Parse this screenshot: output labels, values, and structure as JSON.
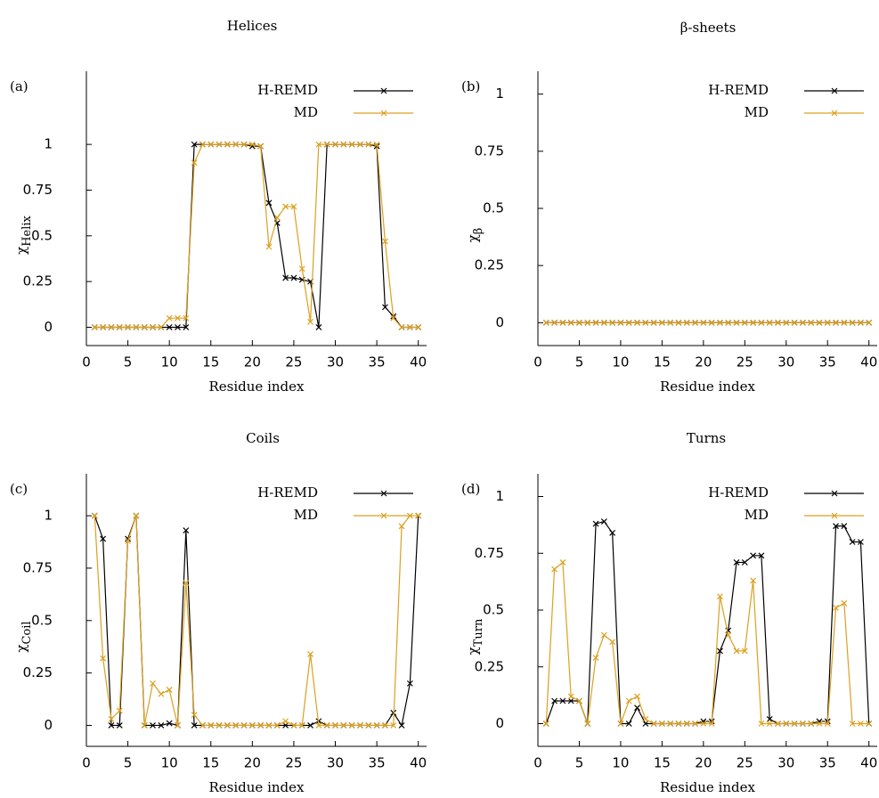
{
  "chart_data": [
    {
      "type": "line",
      "panel": "(a)",
      "title": "Helices",
      "xlabel": "Residue index",
      "ylabel": "χ",
      "ylabel_subscript": "Helix",
      "x": [
        1,
        2,
        3,
        4,
        5,
        6,
        7,
        8,
        9,
        10,
        11,
        12,
        13,
        14,
        15,
        16,
        17,
        18,
        19,
        20,
        21,
        22,
        23,
        24,
        25,
        26,
        27,
        28,
        29,
        30,
        31,
        32,
        33,
        34,
        35,
        36,
        37,
        38,
        39,
        40
      ],
      "series": [
        {
          "name": "H-REMD",
          "color": "#000000",
          "values": [
            0,
            0,
            0,
            0,
            0,
            0,
            0,
            0,
            0,
            0,
            0,
            0,
            1,
            1,
            1,
            1,
            1,
            1,
            1,
            0.99,
            0.99,
            0.68,
            0.57,
            0.27,
            0.27,
            0.26,
            0.25,
            0,
            1,
            1,
            1,
            1,
            1,
            1,
            0.99,
            0.11,
            0.06,
            0,
            0,
            0
          ]
        },
        {
          "name": "MD",
          "color": "#dca020",
          "values": [
            0,
            0,
            0,
            0,
            0,
            0,
            0,
            0,
            0,
            0.05,
            0.05,
            0.05,
            0.9,
            1,
            1,
            1,
            1,
            1,
            1,
            1,
            0.99,
            0.44,
            0.6,
            0.66,
            0.66,
            0.32,
            0.03,
            1,
            1,
            1,
            1,
            1,
            1,
            1,
            1,
            0.47,
            0.05,
            0,
            0,
            0
          ]
        }
      ],
      "xlim": [
        0,
        41
      ],
      "xticks": [
        0,
        5,
        10,
        15,
        20,
        25,
        30,
        35,
        40
      ],
      "ylim": [
        -0.1,
        1.4
      ],
      "yticks": [
        0,
        0.25,
        0.5,
        0.75,
        1
      ]
    },
    {
      "type": "line",
      "panel": "(b)",
      "title": "β-sheets",
      "xlabel": "Residue index",
      "ylabel": "χ",
      "ylabel_subscript": "β",
      "x": [
        1,
        2,
        3,
        4,
        5,
        6,
        7,
        8,
        9,
        10,
        11,
        12,
        13,
        14,
        15,
        16,
        17,
        18,
        19,
        20,
        21,
        22,
        23,
        24,
        25,
        26,
        27,
        28,
        29,
        30,
        31,
        32,
        33,
        34,
        35,
        36,
        37,
        38,
        39,
        40
      ],
      "series": [
        {
          "name": "H-REMD",
          "color": "#000000",
          "values": [
            0,
            0,
            0,
            0,
            0,
            0,
            0,
            0,
            0,
            0,
            0,
            0,
            0,
            0,
            0,
            0,
            0,
            0,
            0,
            0,
            0,
            0,
            0,
            0,
            0,
            0,
            0,
            0,
            0,
            0,
            0,
            0,
            0,
            0,
            0,
            0,
            0,
            0,
            0,
            0
          ]
        },
        {
          "name": "MD",
          "color": "#dca020",
          "values": [
            0,
            0,
            0,
            0,
            0,
            0,
            0,
            0,
            0,
            0,
            0,
            0,
            0,
            0,
            0,
            0,
            0,
            0,
            0,
            0,
            0,
            0,
            0,
            0,
            0,
            0,
            0,
            0,
            0,
            0,
            0,
            0,
            0,
            0,
            0,
            0,
            0,
            0,
            0,
            0
          ]
        }
      ],
      "xlim": [
        0,
        41
      ],
      "xticks": [
        0,
        5,
        10,
        15,
        20,
        25,
        30,
        35,
        40
      ],
      "ylim": [
        -0.1,
        1.1
      ],
      "yticks": [
        0,
        0.25,
        0.5,
        0.75,
        1
      ]
    },
    {
      "type": "line",
      "panel": "(c)",
      "title": "Coils",
      "xlabel": "Residue index",
      "ylabel": "χ",
      "ylabel_subscript": "Coil",
      "x": [
        1,
        2,
        3,
        4,
        5,
        6,
        7,
        8,
        9,
        10,
        11,
        12,
        13,
        14,
        15,
        16,
        17,
        18,
        19,
        20,
        21,
        22,
        23,
        24,
        25,
        26,
        27,
        28,
        29,
        30,
        31,
        32,
        33,
        34,
        35,
        36,
        37,
        38,
        39,
        40
      ],
      "series": [
        {
          "name": "H-REMD",
          "color": "#000000",
          "values": [
            1,
            0.89,
            0,
            0,
            0.89,
            1,
            0,
            0,
            0,
            0.01,
            0,
            0.93,
            0,
            0,
            0,
            0,
            0,
            0,
            0,
            0,
            0,
            0,
            0,
            0,
            0,
            0,
            0,
            0.02,
            0,
            0,
            0,
            0,
            0,
            0,
            0,
            0,
            0.06,
            0,
            0.2,
            1
          ]
        },
        {
          "name": "MD",
          "color": "#dca020",
          "values": [
            1,
            0.32,
            0.03,
            0.07,
            0.88,
            1,
            0,
            0.2,
            0.15,
            0.17,
            0,
            0.68,
            0.05,
            0,
            0,
            0,
            0,
            0,
            0,
            0,
            0,
            0,
            0,
            0.02,
            0,
            0,
            0.34,
            0,
            0,
            0,
            0,
            0,
            0,
            0,
            0,
            0,
            0,
            0.95,
            1,
            1
          ]
        }
      ],
      "xlim": [
        0,
        41
      ],
      "xticks": [
        0,
        5,
        10,
        15,
        20,
        25,
        30,
        35,
        40
      ],
      "ylim": [
        -0.1,
        1.2
      ],
      "yticks": [
        0,
        0.25,
        0.5,
        0.75,
        1
      ]
    },
    {
      "type": "line",
      "panel": "(d)",
      "title": "Turns",
      "xlabel": "Residue index",
      "ylabel": "χ",
      "ylabel_subscript": "Turn",
      "x": [
        1,
        2,
        3,
        4,
        5,
        6,
        7,
        8,
        9,
        10,
        11,
        12,
        13,
        14,
        15,
        16,
        17,
        18,
        19,
        20,
        21,
        22,
        23,
        24,
        25,
        26,
        27,
        28,
        29,
        30,
        31,
        32,
        33,
        34,
        35,
        36,
        37,
        38,
        39,
        40
      ],
      "series": [
        {
          "name": "H-REMD",
          "color": "#000000",
          "values": [
            0,
            0.1,
            0.1,
            0.1,
            0.1,
            0,
            0.88,
            0.89,
            0.84,
            0,
            0,
            0.07,
            0,
            0,
            0,
            0,
            0,
            0,
            0,
            0.01,
            0.01,
            0.32,
            0.41,
            0.71,
            0.71,
            0.74,
            0.74,
            0.02,
            0,
            0,
            0,
            0,
            0,
            0.01,
            0.01,
            0.87,
            0.87,
            0.8,
            0.8,
            0
          ]
        },
        {
          "name": "MD",
          "color": "#dca020",
          "values": [
            0,
            0.68,
            0.71,
            0.12,
            0.1,
            0,
            0.29,
            0.39,
            0.36,
            0,
            0.1,
            0.12,
            0.02,
            0,
            0,
            0,
            0,
            0,
            0,
            0,
            0,
            0.56,
            0.39,
            0.32,
            0.32,
            0.63,
            0,
            0,
            0,
            0,
            0,
            0,
            0,
            0,
            0,
            0.51,
            0.53,
            0,
            0,
            0
          ]
        }
      ],
      "xlim": [
        0,
        41
      ],
      "xticks": [
        0,
        5,
        10,
        15,
        20,
        25,
        30,
        35,
        40
      ],
      "ylim": [
        -0.1,
        1.1
      ],
      "yticks": [
        0,
        0.25,
        0.5,
        0.75,
        1
      ]
    }
  ]
}
